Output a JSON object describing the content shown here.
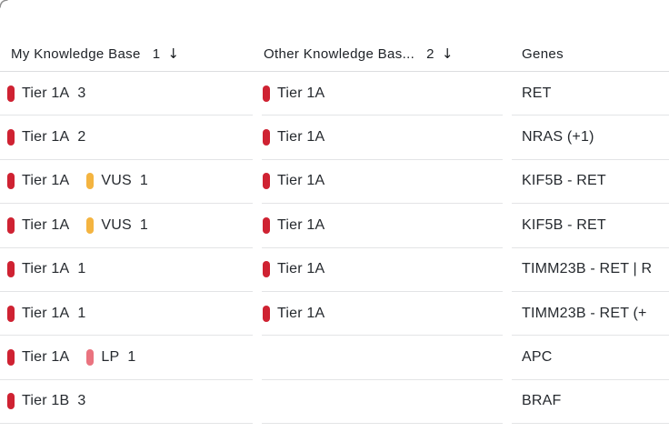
{
  "header": {
    "columns": [
      {
        "label": "My Knowledge Base",
        "sort_order": "1",
        "sort_icon": "↓"
      },
      {
        "label": "Other Knowledge Bas...",
        "sort_order": "2",
        "sort_icon": "↓"
      },
      {
        "label": "Genes"
      }
    ]
  },
  "badge_colors": {
    "red": "#cf2232",
    "amber": "#f4b440",
    "pink": "#ea737f"
  },
  "rows": [
    {
      "my_kb": [
        {
          "pill": "red",
          "label": "Tier 1A",
          "count": "3"
        }
      ],
      "other_kb": [
        {
          "pill": "red",
          "label": "Tier 1A"
        }
      ],
      "genes": "RET"
    },
    {
      "my_kb": [
        {
          "pill": "red",
          "label": "Tier 1A",
          "count": "2"
        }
      ],
      "other_kb": [
        {
          "pill": "red",
          "label": "Tier 1A"
        }
      ],
      "genes": "NRAS (+1)"
    },
    {
      "my_kb": [
        {
          "pill": "red",
          "label": "Tier 1A"
        },
        {
          "pill": "amber",
          "label": "VUS",
          "count": "1"
        }
      ],
      "other_kb": [
        {
          "pill": "red",
          "label": "Tier 1A"
        }
      ],
      "genes": "KIF5B - RET"
    },
    {
      "my_kb": [
        {
          "pill": "red",
          "label": "Tier 1A"
        },
        {
          "pill": "amber",
          "label": "VUS",
          "count": "1"
        }
      ],
      "other_kb": [
        {
          "pill": "red",
          "label": "Tier 1A"
        }
      ],
      "genes": "KIF5B - RET"
    },
    {
      "my_kb": [
        {
          "pill": "red",
          "label": "Tier 1A",
          "count": "1"
        }
      ],
      "other_kb": [
        {
          "pill": "red",
          "label": "Tier 1A"
        }
      ],
      "genes": "TIMM23B - RET | R"
    },
    {
      "my_kb": [
        {
          "pill": "red",
          "label": "Tier 1A",
          "count": "1"
        }
      ],
      "other_kb": [
        {
          "pill": "red",
          "label": "Tier 1A"
        }
      ],
      "genes": "TIMM23B - RET (+"
    },
    {
      "my_kb": [
        {
          "pill": "red",
          "label": "Tier 1A"
        },
        {
          "pill": "pink",
          "label": "LP",
          "count": "1"
        }
      ],
      "other_kb": [],
      "genes": "APC"
    },
    {
      "my_kb": [
        {
          "pill": "red",
          "label": "Tier 1B",
          "count": "3"
        }
      ],
      "other_kb": [],
      "genes": "BRAF"
    }
  ]
}
